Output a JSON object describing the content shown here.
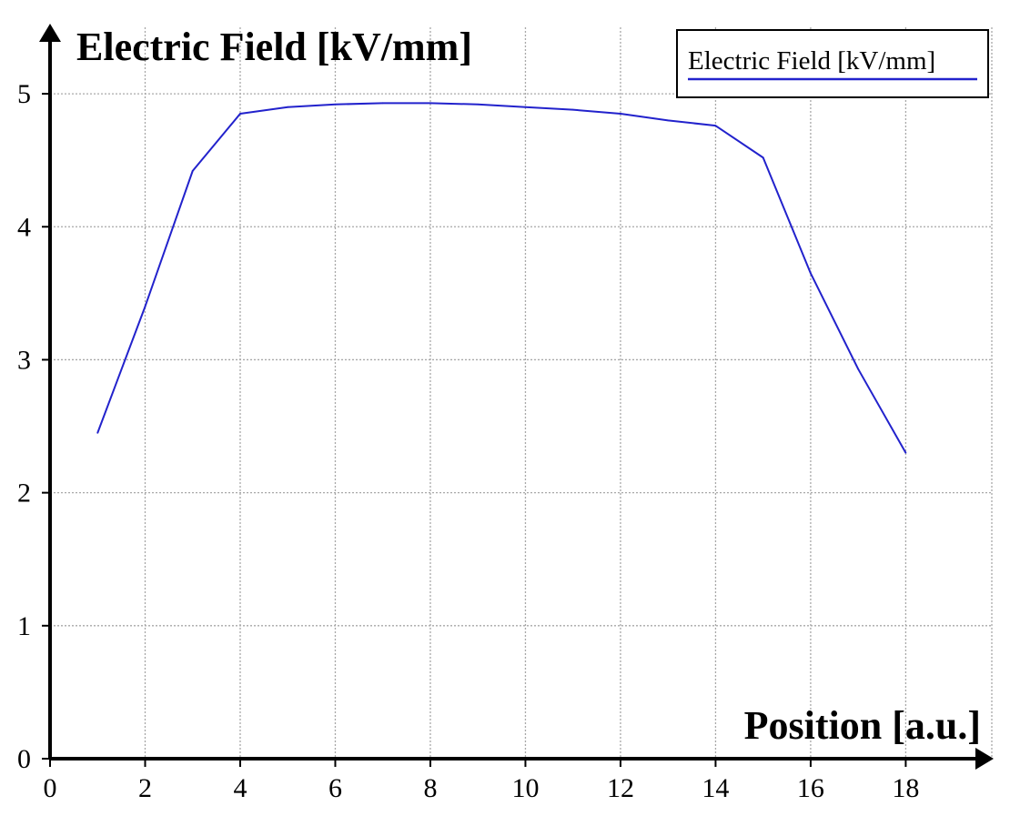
{
  "chart_data": {
    "type": "line",
    "ylabel": "Electric Field [kV/mm]",
    "xlabel": "Position [a.u.]",
    "xlim": [
      0,
      19.6
    ],
    "ylim": [
      0,
      5.5
    ],
    "xticks": [
      0,
      2,
      4,
      6,
      8,
      10,
      12,
      14,
      16,
      18
    ],
    "yticks": [
      0,
      1,
      2,
      3,
      4,
      5
    ],
    "grid": true,
    "legend_position": "top-right",
    "series": [
      {
        "name": "Electric Field [kV/mm]",
        "color": "#2222cc",
        "x": [
          1,
          2,
          3,
          4,
          5,
          6,
          7,
          8,
          9,
          10,
          11,
          12,
          13,
          14,
          15,
          16,
          17,
          18
        ],
        "y": [
          2.45,
          3.4,
          4.42,
          4.85,
          4.9,
          4.92,
          4.93,
          4.93,
          4.92,
          4.9,
          4.88,
          4.85,
          4.8,
          4.76,
          4.52,
          3.65,
          2.93,
          2.3
        ]
      }
    ]
  }
}
